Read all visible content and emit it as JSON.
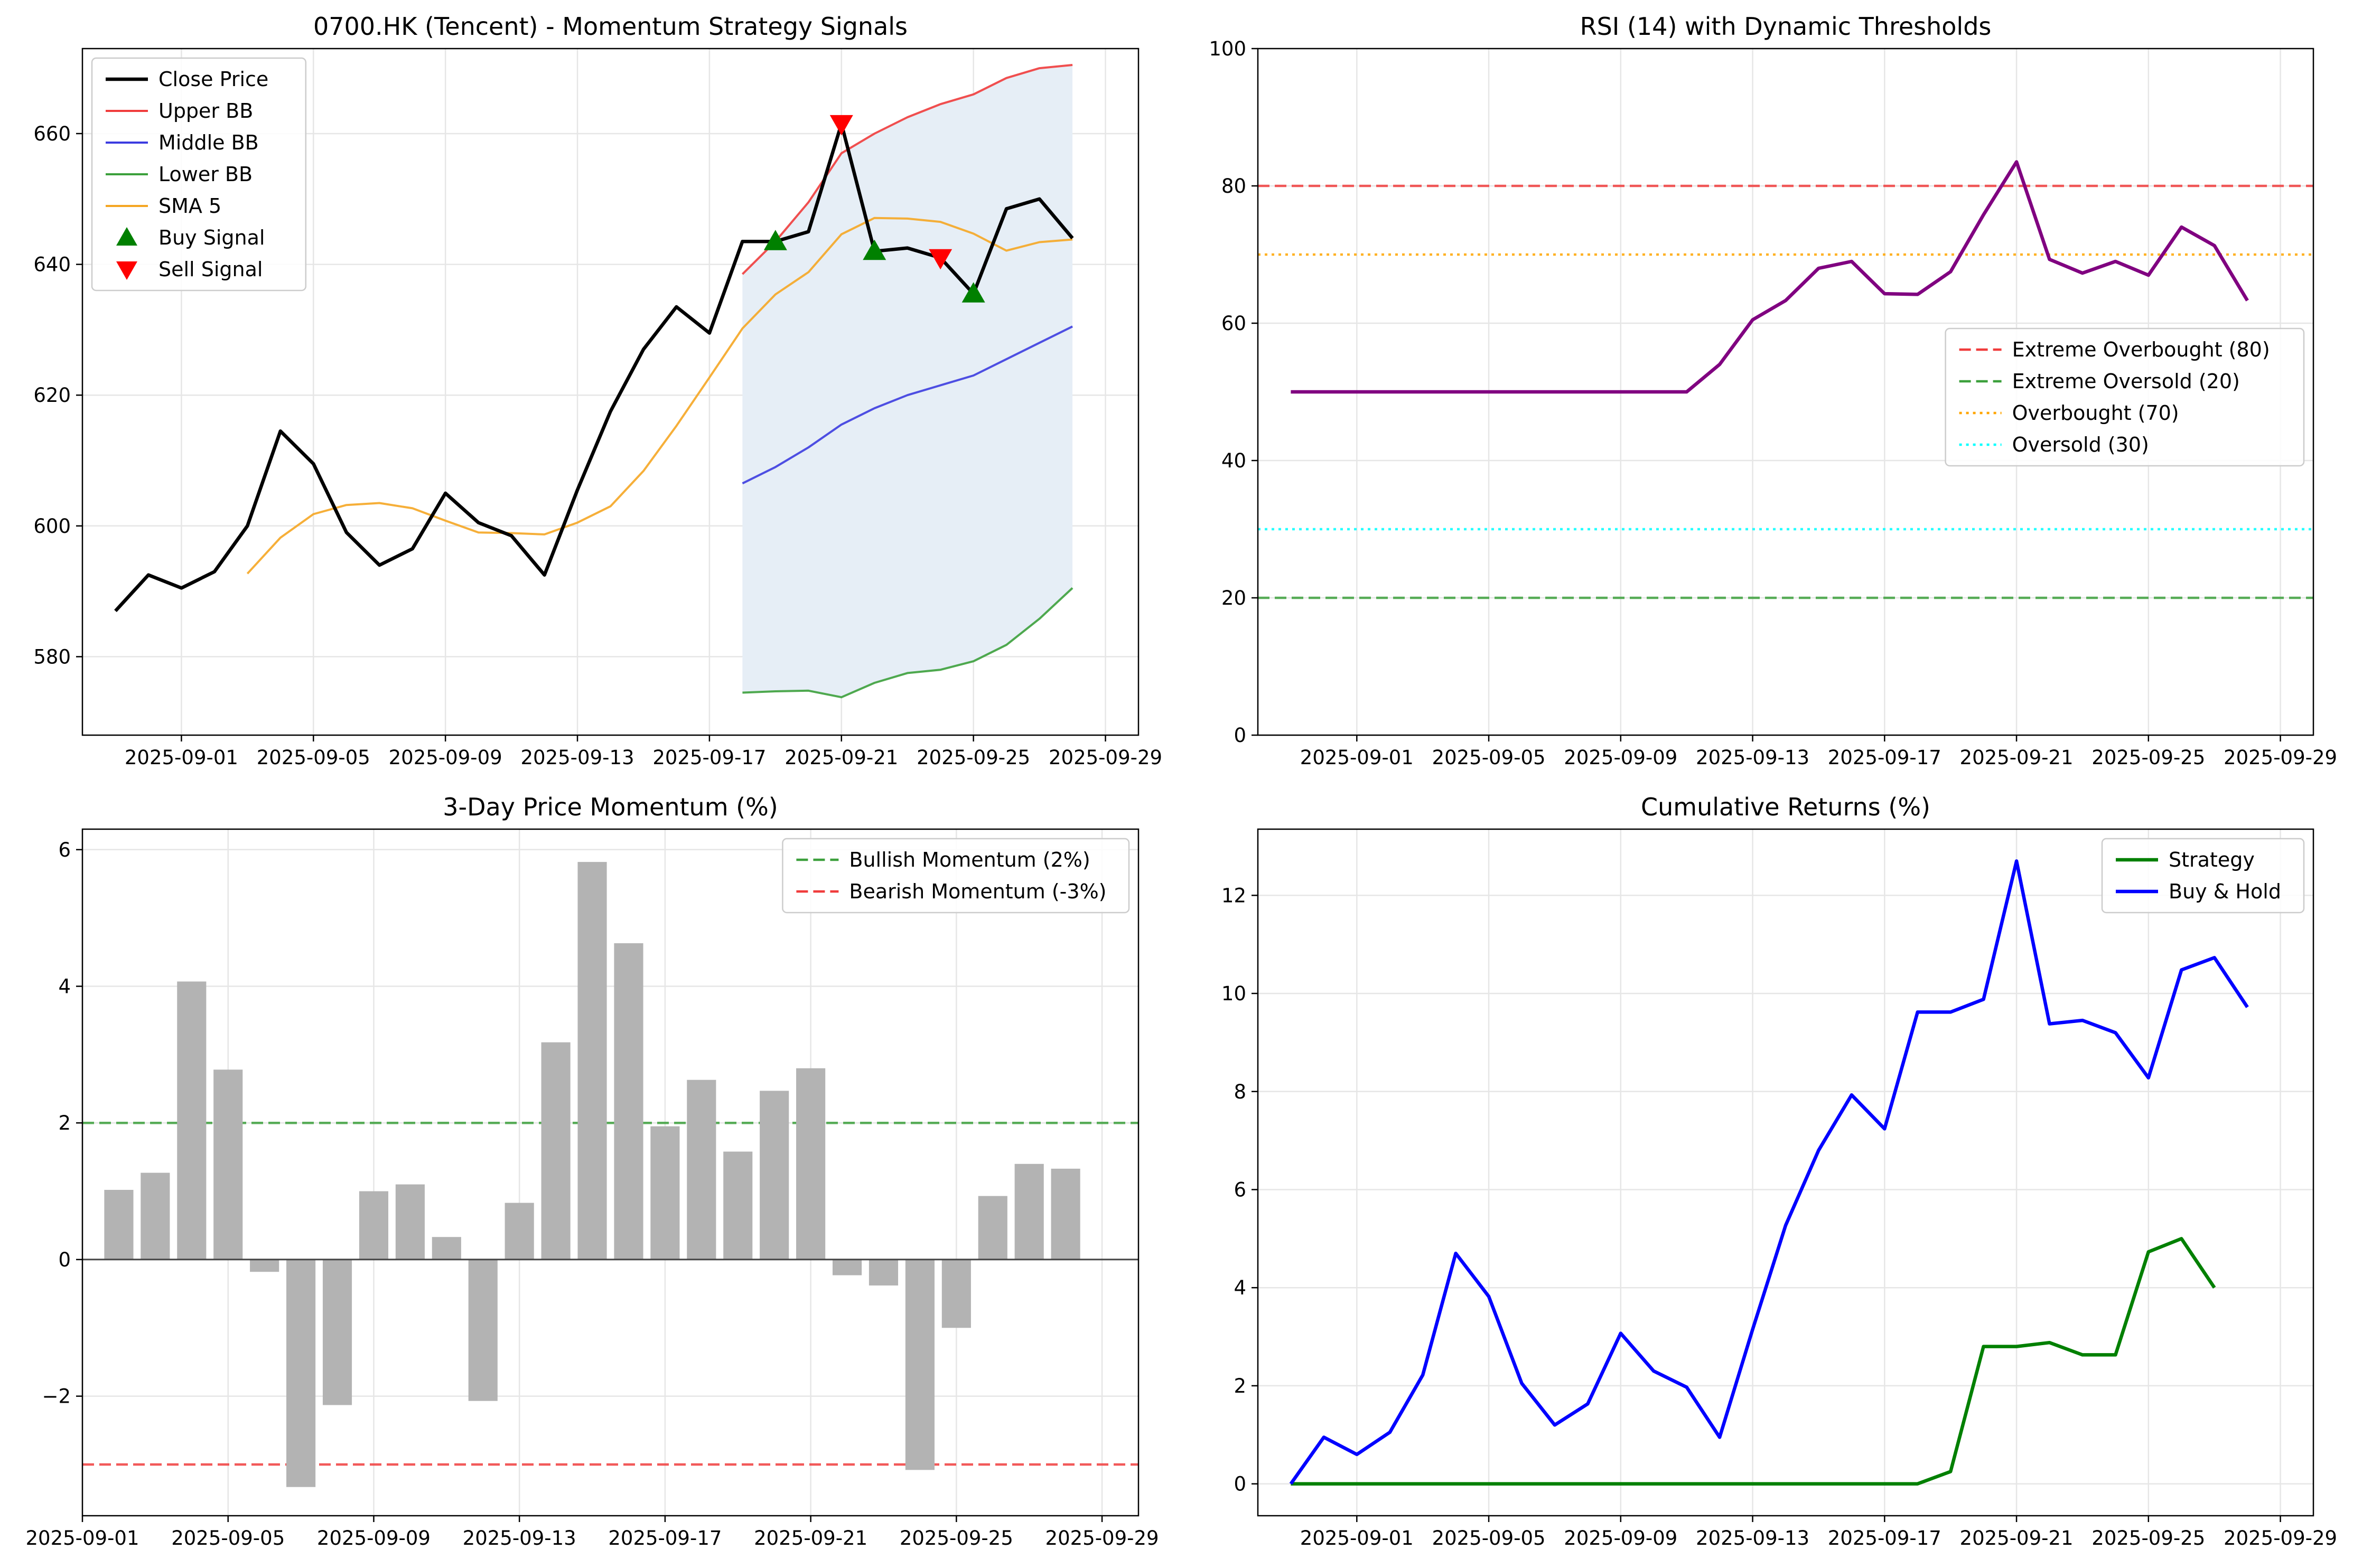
{
  "chart_data": [
    {
      "type": "line",
      "title": "0700.HK (Tencent) - Momentum Strategy Signals",
      "xlabel": "",
      "ylabel": "",
      "x_start": "2025-08-30",
      "xlim": [
        "2025-08-29",
        "2025-09-30"
      ],
      "ylim": [
        568,
        673
      ],
      "xticks": [
        "2025-09-01",
        "2025-09-05",
        "2025-09-09",
        "2025-09-13",
        "2025-09-17",
        "2025-09-21",
        "2025-09-25",
        "2025-09-29"
      ],
      "yticks": [
        580,
        600,
        620,
        640,
        660
      ],
      "grid": true,
      "legend_position": "upper left",
      "series": [
        {
          "name": "Close Price",
          "color": "#000000",
          "start": 0,
          "values": [
            587.0,
            592.5,
            590.5,
            593.0,
            600.0,
            614.5,
            609.5,
            599.0,
            594.0,
            596.5,
            605.0,
            600.5,
            598.5,
            592.5,
            605.5,
            617.5,
            627.0,
            633.5,
            629.5,
            643.5,
            643.5,
            645.0,
            661.5,
            642.0,
            642.5,
            641.0,
            635.5,
            648.5,
            650.0,
            644.0
          ]
        },
        {
          "name": "Upper BB",
          "color": "#f03c3c",
          "start": 19,
          "values": [
            638.5,
            643.5,
            649.5,
            657.0,
            660.0,
            662.5,
            664.5,
            666.0,
            668.5,
            670.0,
            670.5
          ]
        },
        {
          "name": "Middle BB",
          "color": "#3c3ce0",
          "start": 19,
          "values": [
            606.5,
            609.0,
            612.0,
            615.5,
            618.0,
            620.0,
            621.5,
            623.0,
            625.5,
            628.0,
            630.5
          ]
        },
        {
          "name": "Lower BB",
          "color": "#3ca03c",
          "start": 19,
          "values": [
            574.5,
            574.7,
            574.8,
            573.8,
            576.0,
            577.5,
            578.0,
            579.3,
            581.8,
            585.8,
            590.5
          ]
        },
        {
          "name": "SMA 5",
          "color": "#f5a623",
          "start": 4,
          "values": [
            592.7,
            598.2,
            601.8,
            603.2,
            603.5,
            602.7,
            600.8,
            599.0,
            598.9,
            598.7,
            600.5,
            603.0,
            608.4,
            615.3,
            622.7,
            630.2,
            635.4,
            638.8,
            644.6,
            647.1,
            647.0,
            646.5,
            644.7,
            642.1,
            643.4,
            643.8
          ]
        }
      ],
      "buy_signals": [
        {
          "index": 20,
          "value": 643.5
        },
        {
          "index": 23,
          "value": 642.0
        },
        {
          "index": 26,
          "value": 635.5
        }
      ],
      "sell_signals": [
        {
          "index": 22,
          "value": 661.5
        },
        {
          "index": 25,
          "value": 641.0
        }
      ],
      "markers": {
        "buy_label": "Buy Signal",
        "buy_color": "#008000",
        "sell_label": "Sell Signal",
        "sell_color": "#ff0000"
      },
      "band_fill": "#e6eef6"
    },
    {
      "type": "line",
      "title": "RSI (14) with Dynamic Thresholds",
      "xlabel": "",
      "ylabel": "",
      "x_start": "2025-08-30",
      "xlim": [
        "2025-08-29",
        "2025-09-30"
      ],
      "ylim": [
        0,
        100
      ],
      "xticks": [
        "2025-09-01",
        "2025-09-05",
        "2025-09-09",
        "2025-09-13",
        "2025-09-17",
        "2025-09-21",
        "2025-09-25",
        "2025-09-29"
      ],
      "yticks": [
        0,
        20,
        40,
        60,
        80,
        100
      ],
      "grid": true,
      "legend_position": "center right",
      "series": [
        {
          "name": "RSI",
          "color": "#800080",
          "start": 0,
          "values": [
            50,
            50,
            50,
            50,
            50,
            50,
            50,
            50,
            50,
            50,
            50,
            50,
            50,
            54,
            60.5,
            63.3,
            68,
            69,
            64.3,
            64.2,
            67.5,
            75.8,
            83.5,
            69.3,
            67.3,
            69,
            67,
            74,
            71.3,
            63.3
          ]
        }
      ],
      "thresholds": [
        {
          "name": "Extreme Overbought (80)",
          "value": 80,
          "color": "#f03c3c",
          "style": "dashed"
        },
        {
          "name": "Extreme Oversold (20)",
          "value": 20,
          "color": "#3ca03c",
          "style": "dashed"
        },
        {
          "name": "Overbought (70)",
          "value": 70,
          "color": "#ffa500",
          "style": "dotted"
        },
        {
          "name": "Oversold (30)",
          "value": 30,
          "color": "#00ffff",
          "style": "dotted"
        }
      ]
    },
    {
      "type": "bar",
      "title": "3-Day Price Momentum (%)",
      "xlabel": "",
      "ylabel": "",
      "x_start": "2025-09-02",
      "xlim": [
        "2025-09-01",
        "2025-09-30"
      ],
      "ylim": [
        -3.75,
        6.3
      ],
      "xticks": [
        "2025-09-01",
        "2025-09-05",
        "2025-09-09",
        "2025-09-13",
        "2025-09-17",
        "2025-09-21",
        "2025-09-25",
        "2025-09-29"
      ],
      "yticks": [
        -2,
        0,
        2,
        4,
        6
      ],
      "ytick_labels": [
        "−2",
        "0",
        "2",
        "4",
        "6"
      ],
      "grid": true,
      "legend_position": "upper right",
      "bar_color": "#b3b3b3",
      "values": [
        1.02,
        1.27,
        4.07,
        2.78,
        -0.18,
        -3.33,
        -2.13,
        1.0,
        1.1,
        0.33,
        -2.07,
        0.83,
        3.18,
        5.82,
        4.63,
        1.95,
        2.63,
        1.58,
        2.47,
        2.8,
        -0.23,
        -0.38,
        -3.08,
        -1.0,
        0.93,
        1.4,
        1.33
      ],
      "thresholds": [
        {
          "name": "Bullish Momentum (2%)",
          "value": 2,
          "color": "#3ca03c",
          "style": "dashed"
        },
        {
          "name": "Bearish Momentum (-3%)",
          "value": -3,
          "color": "#f03c3c",
          "style": "dashed"
        }
      ]
    },
    {
      "type": "line",
      "title": "Cumulative Returns (%)",
      "xlabel": "",
      "ylabel": "",
      "x_start": "2025-08-30",
      "xlim": [
        "2025-08-29",
        "2025-09-30"
      ],
      "ylim": [
        -0.65,
        13.35
      ],
      "xticks": [
        "2025-09-01",
        "2025-09-05",
        "2025-09-09",
        "2025-09-13",
        "2025-09-17",
        "2025-09-21",
        "2025-09-25",
        "2025-09-29"
      ],
      "yticks": [
        0,
        2,
        4,
        6,
        8,
        10,
        12
      ],
      "grid": true,
      "legend_position": "upper right",
      "series": [
        {
          "name": "Strategy",
          "color": "#008000",
          "start": 0,
          "values": [
            0,
            0,
            0,
            0,
            0,
            0,
            0,
            0,
            0,
            0,
            0,
            0,
            0,
            0,
            0,
            0,
            0,
            0,
            0,
            0,
            0.25,
            2.8,
            2.8,
            2.88,
            2.63,
            2.63,
            4.73,
            5.0,
            4.0
          ]
        },
        {
          "name": "Buy & Hold",
          "color": "#0000ff",
          "start": 0,
          "values": [
            0,
            0.95,
            0.6,
            1.05,
            2.22,
            4.7,
            3.82,
            2.05,
            1.2,
            1.63,
            3.07,
            2.3,
            1.97,
            0.95,
            3.15,
            5.27,
            6.8,
            7.93,
            7.24,
            9.62,
            9.62,
            9.88,
            12.7,
            9.38,
            9.45,
            9.2,
            8.28,
            10.48,
            10.73,
            9.72
          ]
        }
      ]
    }
  ]
}
